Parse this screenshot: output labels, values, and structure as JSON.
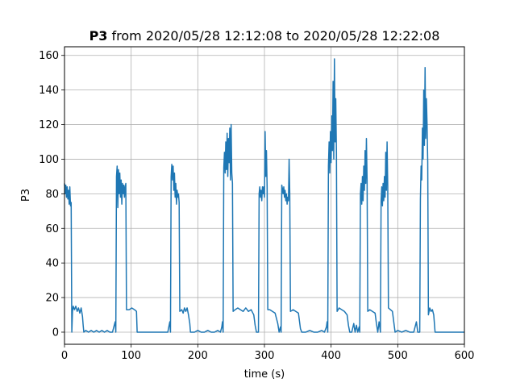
{
  "chart_data": {
    "type": "line",
    "title": {
      "bold": "P3",
      "rest": " from 2020/05/28 12:12:08 to 2020/05/28 12:22:08"
    },
    "xlabel": "time (s)",
    "ylabel": "P3",
    "xlim": [
      0,
      600
    ],
    "ylim": [
      -7,
      165
    ],
    "xticks": [
      0,
      100,
      200,
      300,
      400,
      500,
      600
    ],
    "yticks": [
      0,
      20,
      40,
      60,
      80,
      100,
      120,
      140,
      160
    ],
    "grid": true,
    "colors": {
      "line": "#1f77b4"
    },
    "series": [
      {
        "points": [
          [
            0,
            86
          ],
          [
            1,
            80
          ],
          [
            2,
            85
          ],
          [
            3,
            78
          ],
          [
            4,
            84
          ],
          [
            5,
            77
          ],
          [
            6,
            82
          ],
          [
            7,
            74
          ],
          [
            8,
            84
          ],
          [
            9,
            73
          ],
          [
            10,
            75
          ],
          [
            11,
            0
          ],
          [
            12,
            12
          ],
          [
            13,
            15
          ],
          [
            15,
            13
          ],
          [
            17,
            15
          ],
          [
            19,
            12
          ],
          [
            21,
            14
          ],
          [
            23,
            11
          ],
          [
            25,
            14
          ],
          [
            27,
            9
          ],
          [
            28,
            4
          ],
          [
            29,
            0
          ],
          [
            32,
            1
          ],
          [
            36,
            0
          ],
          [
            40,
            1
          ],
          [
            44,
            0
          ],
          [
            48,
            1
          ],
          [
            52,
            0
          ],
          [
            56,
            1
          ],
          [
            60,
            0
          ],
          [
            64,
            1
          ],
          [
            68,
            0
          ],
          [
            72,
            0
          ],
          [
            74,
            3
          ],
          [
            76,
            6
          ],
          [
            77,
            0
          ],
          [
            78,
            90
          ],
          [
            79,
            96
          ],
          [
            80,
            72
          ],
          [
            81,
            94
          ],
          [
            82,
            80
          ],
          [
            83,
            92
          ],
          [
            84,
            78
          ],
          [
            85,
            88
          ],
          [
            86,
            74
          ],
          [
            87,
            86
          ],
          [
            88,
            80
          ],
          [
            89,
            85
          ],
          [
            90,
            78
          ],
          [
            91,
            84
          ],
          [
            92,
            86
          ],
          [
            93,
            13
          ],
          [
            97,
            13
          ],
          [
            101,
            14
          ],
          [
            105,
            13
          ],
          [
            108,
            12
          ],
          [
            109,
            0
          ],
          [
            115,
            0
          ],
          [
            125,
            0
          ],
          [
            135,
            0
          ],
          [
            145,
            0
          ],
          [
            155,
            0
          ],
          [
            157,
            4
          ],
          [
            158,
            6
          ],
          [
            159,
            0
          ],
          [
            160,
            90
          ],
          [
            161,
            97
          ],
          [
            162,
            88
          ],
          [
            163,
            96
          ],
          [
            164,
            82
          ],
          [
            165,
            92
          ],
          [
            166,
            78
          ],
          [
            167,
            86
          ],
          [
            168,
            74
          ],
          [
            169,
            82
          ],
          [
            170,
            78
          ],
          [
            171,
            80
          ],
          [
            172,
            75
          ],
          [
            173,
            12
          ],
          [
            176,
            13
          ],
          [
            178,
            11
          ],
          [
            180,
            14
          ],
          [
            182,
            12
          ],
          [
            184,
            14
          ],
          [
            186,
            10
          ],
          [
            188,
            5
          ],
          [
            189,
            0
          ],
          [
            195,
            0
          ],
          [
            200,
            1
          ],
          [
            205,
            0
          ],
          [
            210,
            0
          ],
          [
            215,
            1
          ],
          [
            220,
            0
          ],
          [
            225,
            0
          ],
          [
            230,
            1
          ],
          [
            234,
            0
          ],
          [
            236,
            3
          ],
          [
            237,
            6
          ],
          [
            238,
            0
          ],
          [
            239,
            95
          ],
          [
            240,
            104
          ],
          [
            241,
            92
          ],
          [
            242,
            110
          ],
          [
            243,
            94
          ],
          [
            244,
            115
          ],
          [
            245,
            90
          ],
          [
            246,
            112
          ],
          [
            247,
            98
          ],
          [
            248,
            118
          ],
          [
            249,
            88
          ],
          [
            250,
            120
          ],
          [
            251,
            92
          ],
          [
            252,
            86
          ],
          [
            253,
            12
          ],
          [
            256,
            13
          ],
          [
            260,
            14
          ],
          [
            264,
            13
          ],
          [
            268,
            12
          ],
          [
            272,
            14
          ],
          [
            276,
            12
          ],
          [
            280,
            13
          ],
          [
            284,
            10
          ],
          [
            286,
            4
          ],
          [
            288,
            0
          ],
          [
            291,
            0
          ],
          [
            292,
            80
          ],
          [
            293,
            84
          ],
          [
            294,
            78
          ],
          [
            295,
            82
          ],
          [
            296,
            76
          ],
          [
            297,
            84
          ],
          [
            298,
            80
          ],
          [
            299,
            84
          ],
          [
            300,
            78
          ],
          [
            301,
            116
          ],
          [
            302,
            90
          ],
          [
            303,
            105
          ],
          [
            304,
            84
          ],
          [
            305,
            13
          ],
          [
            308,
            13
          ],
          [
            312,
            12
          ],
          [
            316,
            11
          ],
          [
            320,
            5
          ],
          [
            322,
            0
          ],
          [
            324,
            3
          ],
          [
            325,
            0
          ],
          [
            326,
            85
          ],
          [
            327,
            83
          ],
          [
            328,
            80
          ],
          [
            329,
            84
          ],
          [
            330,
            78
          ],
          [
            331,
            82
          ],
          [
            332,
            76
          ],
          [
            333,
            80
          ],
          [
            334,
            74
          ],
          [
            335,
            78
          ],
          [
            336,
            76
          ],
          [
            337,
            100
          ],
          [
            338,
            80
          ],
          [
            339,
            12
          ],
          [
            343,
            13
          ],
          [
            347,
            12
          ],
          [
            351,
            11
          ],
          [
            354,
            2
          ],
          [
            356,
            0
          ],
          [
            362,
            0
          ],
          [
            368,
            1
          ],
          [
            374,
            0
          ],
          [
            380,
            0
          ],
          [
            386,
            1
          ],
          [
            390,
            0
          ],
          [
            393,
            3
          ],
          [
            394,
            6
          ],
          [
            395,
            0
          ],
          [
            396,
            96
          ],
          [
            397,
            110
          ],
          [
            398,
            92
          ],
          [
            399,
            116
          ],
          [
            400,
            98
          ],
          [
            401,
            125
          ],
          [
            402,
            105
          ],
          [
            403,
            145
          ],
          [
            404,
            100
          ],
          [
            405,
            158
          ],
          [
            406,
            110
          ],
          [
            407,
            135
          ],
          [
            408,
            104
          ],
          [
            409,
            12
          ],
          [
            412,
            14
          ],
          [
            416,
            13
          ],
          [
            420,
            12
          ],
          [
            424,
            10
          ],
          [
            426,
            4
          ],
          [
            428,
            0
          ],
          [
            431,
            0
          ],
          [
            434,
            5
          ],
          [
            436,
            0
          ],
          [
            438,
            4
          ],
          [
            440,
            0
          ],
          [
            442,
            3
          ],
          [
            443,
            0
          ],
          [
            444,
            80
          ],
          [
            445,
            86
          ],
          [
            446,
            74
          ],
          [
            447,
            90
          ],
          [
            448,
            76
          ],
          [
            449,
            96
          ],
          [
            450,
            82
          ],
          [
            451,
            105
          ],
          [
            452,
            86
          ],
          [
            453,
            112
          ],
          [
            454,
            88
          ],
          [
            455,
            12
          ],
          [
            458,
            13
          ],
          [
            462,
            12
          ],
          [
            466,
            11
          ],
          [
            468,
            5
          ],
          [
            470,
            0
          ],
          [
            472,
            6
          ],
          [
            474,
            0
          ],
          [
            475,
            76
          ],
          [
            476,
            84
          ],
          [
            477,
            73
          ],
          [
            478,
            86
          ],
          [
            479,
            76
          ],
          [
            480,
            90
          ],
          [
            481,
            78
          ],
          [
            482,
            104
          ],
          [
            483,
            82
          ],
          [
            484,
            110
          ],
          [
            485,
            84
          ],
          [
            486,
            14
          ],
          [
            489,
            13
          ],
          [
            492,
            12
          ],
          [
            494,
            6
          ],
          [
            496,
            0
          ],
          [
            500,
            1
          ],
          [
            506,
            0
          ],
          [
            512,
            1
          ],
          [
            518,
            0
          ],
          [
            524,
            0
          ],
          [
            528,
            6
          ],
          [
            530,
            0
          ],
          [
            533,
            0
          ],
          [
            534,
            77
          ],
          [
            535,
            96
          ],
          [
            536,
            88
          ],
          [
            537,
            118
          ],
          [
            538,
            100
          ],
          [
            539,
            140
          ],
          [
            540,
            108
          ],
          [
            541,
            153
          ],
          [
            542,
            112
          ],
          [
            543,
            135
          ],
          [
            544,
            120
          ],
          [
            545,
            98
          ],
          [
            546,
            10
          ],
          [
            548,
            14
          ],
          [
            550,
            12
          ],
          [
            552,
            13
          ],
          [
            554,
            10
          ],
          [
            556,
            0
          ],
          [
            565,
            0
          ],
          [
            575,
            0
          ],
          [
            585,
            0
          ],
          [
            595,
            0
          ],
          [
            600,
            0
          ]
        ]
      }
    ]
  }
}
